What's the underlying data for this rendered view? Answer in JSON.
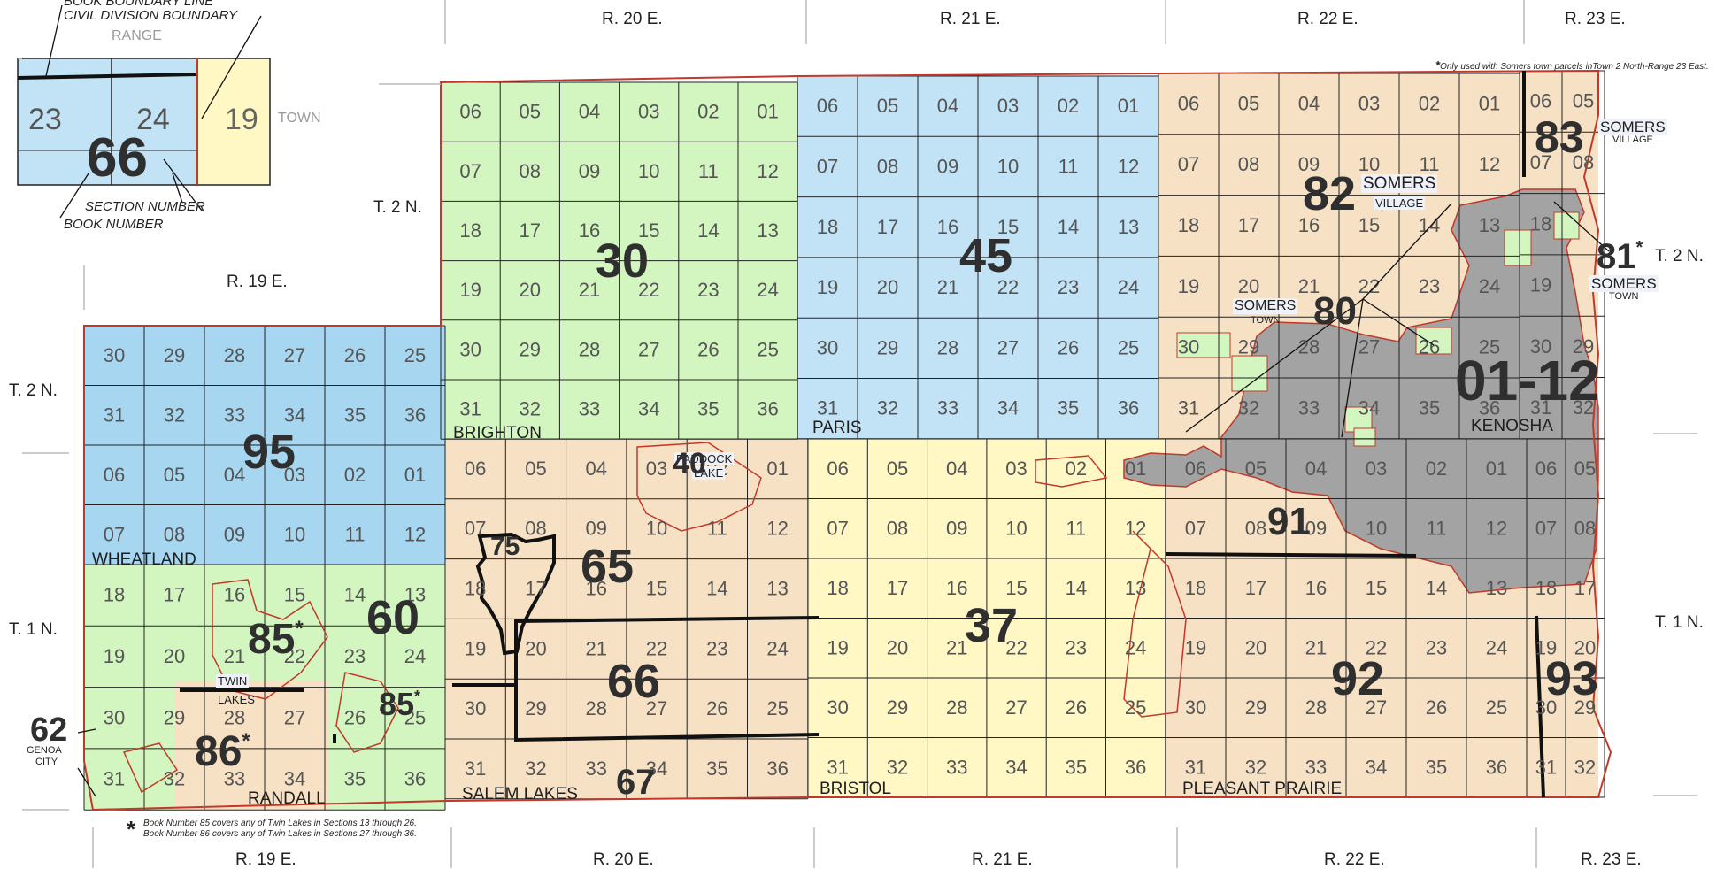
{
  "legend": {
    "book_boundary_line": "BOOK BOUNDARY LINE",
    "civil_division_boundary": "CIVIL DIVISION BOUNDARY",
    "range": "RANGE",
    "town": "TOWN",
    "section_number": "SECTION NUMBER",
    "book_number": "BOOK NUMBER",
    "sample_sections": [
      "23",
      "24",
      "19"
    ],
    "sample_book": "66"
  },
  "ranges_top": [
    "R. 20 E.",
    "R. 21 E.",
    "R. 22 E.",
    "R. 23 E."
  ],
  "ranges_mid": [
    "R. 19 E."
  ],
  "ranges_bottom": [
    "R. 19 E.",
    "R. 20 E.",
    "R. 21 E.",
    "R. 22 E.",
    "R. 23 E."
  ],
  "townships": [
    "T. 2 N.",
    "T. 2 N.",
    "T. 2 N.",
    "T. 1 N.",
    "T. 1 N."
  ],
  "notes": {
    "top_right": "Only used with Somers town parcels inTown 2 North-Range 23 East.",
    "bottom_line_1": "Book Number 85 covers any of Twin Lakes in Sections 13 through 26.",
    "bottom_line_2": "Book Number 86 covers any of Twin Lakes in Sections 27 through 36."
  },
  "municipalities": {
    "brighton": "BRIGHTON",
    "paris": "PARIS",
    "wheatland": "WHEATLAND",
    "randall": "RANDALL",
    "salem_lakes": "SALEM LAKES",
    "bristol": "BRISTOL",
    "pleasant_prairie": "PLEASANT PRAIRIE",
    "kenosha": "KENOSHA",
    "paddock_1": "PADDOCK",
    "paddock_2": "LAKE",
    "twin_1": "TWIN",
    "twin_2": "LAKES",
    "somers_town_1": "SOMERS",
    "somers_town_2": "TOWN",
    "somers_village_82_1": "SOMERS",
    "somers_village_82_2": "VILLAGE",
    "somers_village_83_1": "SOMERS",
    "somers_village_83_2": "VILLAGE",
    "somers_81_1": "SOMERS",
    "somers_81_2": "TOWN",
    "genoa_1": "GENOA",
    "genoa_2": "CITY"
  },
  "books": {
    "b30": "30",
    "b45": "45",
    "b82": "82",
    "b83": "83",
    "b81": "81",
    "b80": "80",
    "b0112": "01-12",
    "b95": "95",
    "b40": "40",
    "b65": "65",
    "b75": "75",
    "b60": "60",
    "b85a": "85",
    "b85b": "85",
    "b86": "86",
    "b62": "62",
    "b66": "66",
    "b67": "67",
    "b37": "37",
    "b91": "91",
    "b92": "92",
    "b93": "93"
  },
  "colors": {
    "green": "#d3f6c0",
    "blue": "#c2e3f6",
    "blue_dark": "#a7d6f0",
    "tan": "#f7e1c4",
    "yellow": "#fff7c4",
    "gray": "#a3a3a3",
    "red_line": "#c0392b",
    "grid_line": "#222222"
  },
  "section_numbers": {
    "T2N_upper": [
      [
        "06",
        "05",
        "04",
        "03",
        "02",
        "01"
      ],
      [
        "07",
        "08",
        "09",
        "10",
        "11",
        "12"
      ],
      [
        "18",
        "17",
        "16",
        "15",
        "14",
        "13"
      ],
      [
        "19",
        "20",
        "21",
        "22",
        "23",
        "24"
      ],
      [
        "30",
        "29",
        "28",
        "27",
        "26",
        "25"
      ],
      [
        "31",
        "32",
        "33",
        "34",
        "35",
        "36"
      ]
    ],
    "T1N_full": [
      [
        "06",
        "05",
        "04",
        "03",
        "02",
        "01"
      ],
      [
        "07",
        "08",
        "09",
        "10",
        "11",
        "12"
      ],
      [
        "18",
        "17",
        "16",
        "15",
        "14",
        "13"
      ],
      [
        "19",
        "20",
        "21",
        "22",
        "23",
        "24"
      ],
      [
        "30",
        "29",
        "28",
        "27",
        "26",
        "25"
      ],
      [
        "31",
        "32",
        "33",
        "34",
        "35",
        "36"
      ]
    ],
    "R19_lower": [
      [
        "30",
        "29",
        "28",
        "27",
        "26",
        "25"
      ],
      [
        "31",
        "32",
        "33",
        "34",
        "35",
        "36"
      ]
    ],
    "R23_partial": [
      [
        "06",
        "05"
      ],
      [
        "07",
        "08"
      ],
      [
        "18",
        ""
      ],
      [
        "19",
        ""
      ],
      [
        "30",
        "29"
      ],
      [
        "31",
        "32"
      ]
    ],
    "R23_T1N": [
      [
        "06",
        "05"
      ],
      [
        "07",
        "08"
      ],
      [
        "18",
        "17"
      ],
      [
        "19",
        "20"
      ],
      [
        "30",
        "29"
      ],
      [
        "31",
        "32"
      ]
    ]
  }
}
